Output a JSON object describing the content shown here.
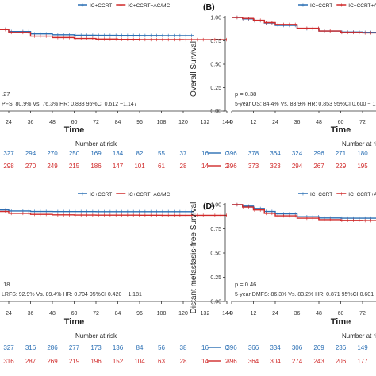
{
  "chart_data": [
    {
      "id": "A",
      "type": "line",
      "panel_label": "",
      "ylabel": "",
      "xlabel": "Time",
      "legend": [
        "IC+CCRT",
        "IC+CCRT+AC/MC"
      ],
      "x_ticks": [
        24,
        36,
        48,
        60,
        72,
        84,
        96,
        108,
        120,
        132,
        144
      ],
      "xlim": [
        0,
        144
      ],
      "ylim": [
        0,
        1
      ],
      "series": [
        {
          "name": "IC+CCRT",
          "color": "#2a6fb4",
          "x": [
            0,
            6,
            12,
            18,
            24,
            36,
            48,
            60,
            72,
            84,
            96,
            108,
            120,
            126
          ],
          "y": [
            1.0,
            0.97,
            0.92,
            0.875,
            0.85,
            0.825,
            0.815,
            0.81,
            0.809,
            0.808,
            0.807,
            0.806,
            0.805,
            0.805
          ]
        },
        {
          "name": "IC+CCRT+AC/MC",
          "color": "#d02a2a",
          "x": [
            0,
            6,
            12,
            18,
            24,
            36,
            48,
            60,
            72,
            84,
            96,
            108,
            120,
            132,
            144
          ],
          "y": [
            1.0,
            0.97,
            0.915,
            0.87,
            0.84,
            0.8,
            0.785,
            0.775,
            0.768,
            0.765,
            0.763,
            0.763,
            0.762,
            0.762,
            0.762
          ]
        }
      ],
      "p_text": ".27",
      "stat_text": "PFS: 80.9% Vs. 76.3% HR: 0.838 95%CI 0.612 ~1.147",
      "risk_title": "Number at risk",
      "risk_rows": [
        {
          "color": "#2a6fb4",
          "values": [
            "327",
            "294",
            "270",
            "250",
            "169",
            "134",
            "82",
            "55",
            "37",
            "16",
            "0"
          ]
        },
        {
          "color": "#d02a2a",
          "values": [
            "298",
            "270",
            "249",
            "215",
            "186",
            "147",
            "101",
            "61",
            "28",
            "14",
            "2"
          ]
        }
      ]
    },
    {
      "id": "B",
      "type": "line",
      "panel_label": "(B)",
      "ylabel": "Overall Survival",
      "xlabel": "Time",
      "legend": [
        "IC+CCRT",
        "IC+CCRT+AC/"
      ],
      "x_ticks": [
        0,
        12,
        24,
        36,
        48,
        60,
        72,
        84,
        96,
        108
      ],
      "xlim": [
        0,
        144
      ],
      "ylim": [
        0,
        1
      ],
      "y_ticks": [
        "0.00",
        "0.25",
        "0.50",
        "0.75",
        "1.00"
      ],
      "series": [
        {
          "name": "IC+CCRT",
          "color": "#2a6fb4",
          "x": [
            0,
            6,
            12,
            18,
            24,
            36,
            48,
            60,
            72,
            84,
            96,
            108,
            120
          ],
          "y": [
            1.0,
            0.985,
            0.965,
            0.94,
            0.915,
            0.88,
            0.855,
            0.845,
            0.842,
            0.84,
            0.84,
            0.84,
            0.84
          ]
        },
        {
          "name": "IC+CCRT+AC/MC",
          "color": "#d02a2a",
          "x": [
            0,
            6,
            12,
            18,
            24,
            36,
            48,
            60,
            72,
            84,
            96,
            108,
            120
          ],
          "y": [
            1.0,
            0.99,
            0.97,
            0.945,
            0.925,
            0.885,
            0.855,
            0.84,
            0.835,
            0.832,
            0.83,
            0.83,
            0.83
          ]
        }
      ],
      "p_text": "p = 0.38",
      "stat_text": "5-year OS: 84.4% Vs. 83.9% HR: 0.853 95%CI 0.600 ~ 1.",
      "risk_title": "Number at risk",
      "risk_rows": [
        {
          "color": "#2a6fb4",
          "values": [
            "396",
            "378",
            "364",
            "324",
            "296",
            "271",
            "180",
            "142",
            "86"
          ]
        },
        {
          "color": "#d02a2a",
          "values": [
            "396",
            "373",
            "323",
            "294",
            "267",
            "229",
            "195",
            "152",
            "105",
            "64"
          ]
        }
      ]
    },
    {
      "id": "C",
      "type": "line",
      "panel_label": "",
      "ylabel": "",
      "xlabel": "Time",
      "legend": [
        "IC+CCRT",
        "IC+CCRT+AC/MC"
      ],
      "x_ticks": [
        24,
        36,
        48,
        60,
        72,
        84,
        96,
        108,
        120,
        132,
        144
      ],
      "xlim": [
        0,
        144
      ],
      "ylim": [
        0,
        1
      ],
      "series": [
        {
          "name": "IC+CCRT",
          "color": "#2a6fb4",
          "x": [
            0,
            6,
            12,
            18,
            24,
            36,
            48,
            60,
            72,
            84,
            96,
            108,
            120,
            126
          ],
          "y": [
            1.0,
            0.985,
            0.96,
            0.945,
            0.935,
            0.93,
            0.929,
            0.929,
            0.928,
            0.928,
            0.928,
            0.928,
            0.928,
            0.928
          ]
        },
        {
          "name": "IC+CCRT+AC/MC",
          "color": "#d02a2a",
          "x": [
            0,
            6,
            12,
            18,
            24,
            36,
            48,
            60,
            72,
            84,
            96,
            108,
            120,
            132,
            144
          ],
          "y": [
            1.0,
            0.985,
            0.955,
            0.93,
            0.91,
            0.9,
            0.895,
            0.893,
            0.892,
            0.892,
            0.891,
            0.89,
            0.89,
            0.89,
            0.89
          ]
        }
      ],
      "p_text": ".18",
      "stat_text": "LRFS: 92.9% Vs. 89.4% HR: 0.704 95%CI 0.420 ~ 1.181",
      "risk_title": "Number at risk",
      "risk_rows": [
        {
          "color": "#2a6fb4",
          "values": [
            "327",
            "316",
            "286",
            "277",
            "173",
            "136",
            "84",
            "56",
            "38",
            "16",
            "0"
          ]
        },
        {
          "color": "#d02a2a",
          "values": [
            "316",
            "287",
            "269",
            "219",
            "196",
            "152",
            "104",
            "63",
            "28",
            "14",
            "2"
          ]
        }
      ]
    },
    {
      "id": "D",
      "type": "line",
      "panel_label": "(D)",
      "ylabel": "Distant metastasis-free Survival",
      "xlabel": "Time",
      "legend": [
        "IC+CCRT",
        "IC+CCRT+AC/"
      ],
      "x_ticks": [
        0,
        12,
        24,
        36,
        48,
        60,
        72,
        84,
        96,
        108
      ],
      "xlim": [
        0,
        144
      ],
      "ylim": [
        0,
        1
      ],
      "y_ticks": [
        "0.00",
        "0.25",
        "0.50",
        "0.75",
        "1.00"
      ],
      "series": [
        {
          "name": "IC+CCRT",
          "color": "#2a6fb4",
          "x": [
            0,
            6,
            12,
            18,
            24,
            36,
            48,
            60,
            72,
            84,
            96,
            108,
            120
          ],
          "y": [
            1.0,
            0.985,
            0.96,
            0.93,
            0.905,
            0.875,
            0.862,
            0.86,
            0.86,
            0.86,
            0.86,
            0.86,
            0.86
          ]
        },
        {
          "name": "IC+CCRT+AC/MC",
          "color": "#d02a2a",
          "x": [
            0,
            6,
            12,
            18,
            24,
            36,
            48,
            60,
            72,
            84,
            96,
            108,
            120
          ],
          "y": [
            1.0,
            0.975,
            0.945,
            0.91,
            0.885,
            0.86,
            0.845,
            0.838,
            0.835,
            0.834,
            0.833,
            0.832,
            0.832
          ]
        }
      ],
      "p_text": "p = 0.46",
      "stat_text": "5-year DMFS: 86.3% Vs. 83.2% HR: 0.871 95%CI 0.601 ~",
      "risk_title": "Number at risk",
      "risk_rows": [
        {
          "color": "#2a6fb4",
          "values": [
            "396",
            "366",
            "334",
            "306",
            "269",
            "236",
            "149",
            "84",
            "57"
          ]
        },
        {
          "color": "#d02a2a",
          "values": [
            "396",
            "364",
            "304",
            "274",
            "243",
            "206",
            "177",
            "140",
            "93"
          ]
        }
      ]
    }
  ]
}
